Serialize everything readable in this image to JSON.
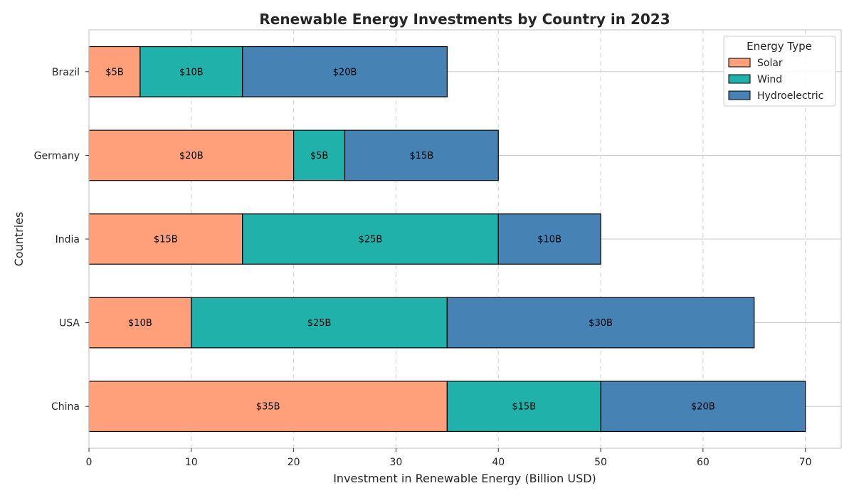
{
  "chart_data": {
    "type": "bar",
    "orientation": "horizontal",
    "stacked": true,
    "title": "Renewable Energy Investments by Country in 2023",
    "xlabel": "Investment in Renewable Energy (Billion USD)",
    "ylabel": "Countries",
    "categories": [
      "China",
      "USA",
      "India",
      "Germany",
      "Brazil"
    ],
    "series": [
      {
        "name": "Solar",
        "values": [
          35,
          10,
          15,
          20,
          5
        ],
        "labels": [
          "$35B",
          "$10B",
          "$15B",
          "$20B",
          "$5B"
        ],
        "color": "#FFA07A"
      },
      {
        "name": "Wind",
        "values": [
          15,
          25,
          25,
          5,
          10
        ],
        "labels": [
          "$15B",
          "$25B",
          "$25B",
          "$5B",
          "$10B"
        ],
        "color": "#20B2AA"
      },
      {
        "name": "Hydroelectric",
        "values": [
          20,
          30,
          10,
          15,
          20
        ],
        "labels": [
          "$20B",
          "$30B",
          "$10B",
          "$15B",
          "$20B"
        ],
        "color": "#4682B4"
      }
    ],
    "xlim": [
      0,
      73.5
    ],
    "xticks": [
      0,
      10,
      20,
      30,
      40,
      50,
      60,
      70
    ],
    "xtick_labels": [
      "0",
      "10",
      "20",
      "30",
      "40",
      "50",
      "60",
      "70"
    ],
    "legend": {
      "title": "Energy Type",
      "placement": "top-right"
    },
    "grid": {
      "x": "dashed",
      "y": "solid"
    }
  }
}
